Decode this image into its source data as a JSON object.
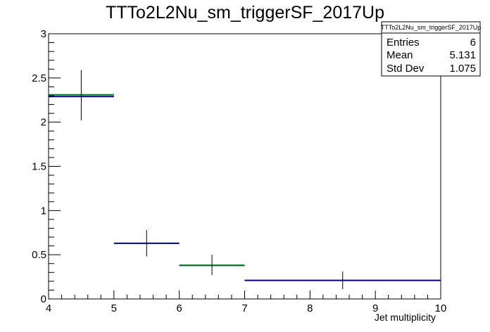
{
  "chart_data": {
    "type": "histogram",
    "title": "TTTo2L2Nu_sm_triggerSF_2017Up",
    "xlabel": "Jet multiplicity",
    "ylabel": "",
    "xlim": [
      4,
      10
    ],
    "ylim": [
      0,
      3
    ],
    "x_ticks": [
      "4",
      "5",
      "6",
      "7",
      "8",
      "9",
      "10"
    ],
    "y_ticks": [
      "0",
      "0.5",
      "1",
      "1.5",
      "2",
      "2.5",
      "3"
    ],
    "grid": false,
    "series": [
      {
        "name": "",
        "color": "#00008b",
        "bins": [
          {
            "x_low": 4,
            "x_high": 5,
            "value": 2.29
          },
          {
            "x_low": 5,
            "x_high": 6,
            "value": 0.63
          },
          {
            "x_low": 6,
            "x_high": 7,
            "value": 0.38
          },
          {
            "x_low": 7,
            "x_high": 10,
            "value": 0.21
          }
        ]
      },
      {
        "name": "",
        "color": "#008000",
        "bins": [
          {
            "x_low": 4,
            "x_high": 5,
            "value": 2.31
          },
          {
            "x_low": 6,
            "x_high": 7,
            "value": 0.38
          }
        ]
      }
    ],
    "error_bars": [
      {
        "x": 4.5,
        "y_low": 2.02,
        "y_high": 2.59
      },
      {
        "x": 5.5,
        "y_low": 0.48,
        "y_high": 0.78
      },
      {
        "x": 6.5,
        "y_low": 0.27,
        "y_high": 0.5
      },
      {
        "x": 8.5,
        "y_low": 0.11,
        "y_high": 0.31
      }
    ],
    "stats_box": {
      "title": "TTTo2L2Nu_sm_triggerSF_2017Up",
      "placement": "top-right",
      "rows": [
        {
          "label": "Entries",
          "value": "6"
        },
        {
          "label": "Mean",
          "value": "5.131"
        },
        {
          "label": "Std Dev",
          "value": "1.075"
        }
      ]
    }
  }
}
